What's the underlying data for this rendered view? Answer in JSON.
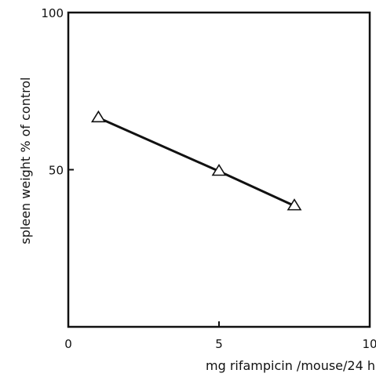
{
  "chart_data": {
    "type": "line",
    "title": "",
    "xlabel": "mg rifampicin /mouse/24 h",
    "ylabel": "spleen weight % of control",
    "xlim": [
      0,
      10
    ],
    "ylim": [
      0,
      100
    ],
    "x_ticks": [
      0,
      5,
      10
    ],
    "y_ticks": [
      50,
      100
    ],
    "grid": false,
    "series": [
      {
        "marker": "triangle-open",
        "color": "#111111",
        "x": [
          1,
          5,
          7.5
        ],
        "y": [
          66.5,
          49.5,
          38.5
        ]
      }
    ]
  }
}
